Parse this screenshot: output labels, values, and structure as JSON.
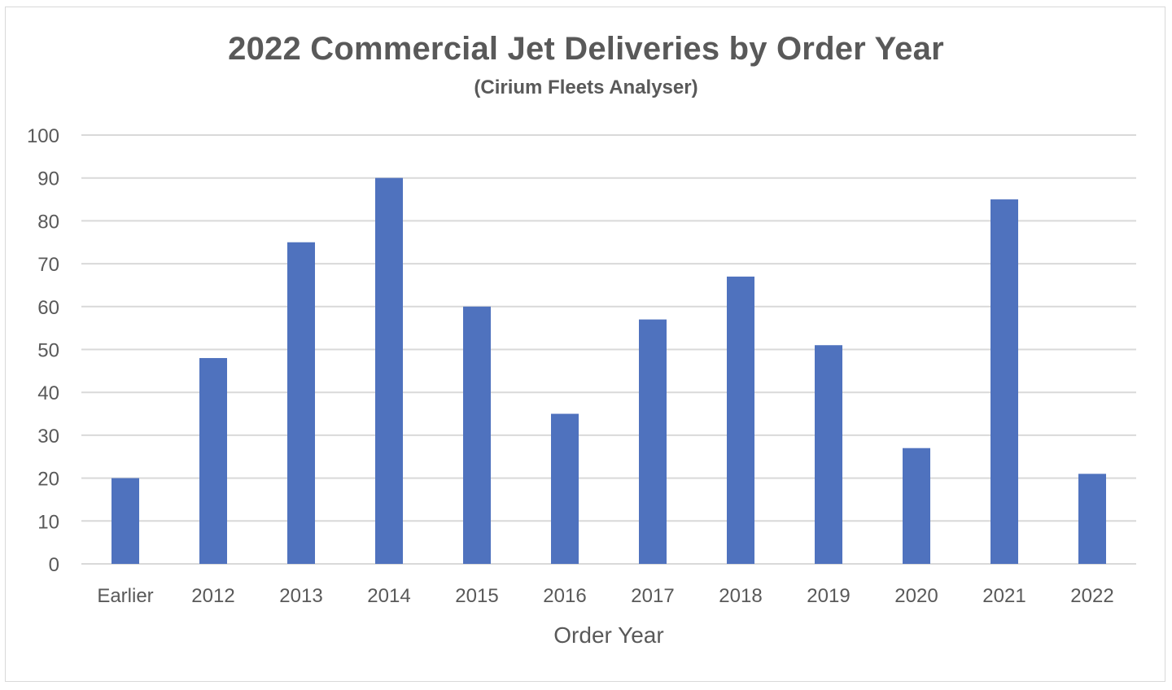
{
  "chart_data": {
    "type": "bar",
    "title": "2022 Commercial Jet Deliveries by Order Year",
    "subtitle": "(Cirium Fleets Analyser)",
    "xlabel": "Order Year",
    "ylabel": "",
    "categories": [
      "Earlier",
      "2012",
      "2013",
      "2014",
      "2015",
      "2016",
      "2017",
      "2018",
      "2019",
      "2020",
      "2021",
      "2022"
    ],
    "values": [
      20,
      48,
      75,
      90,
      60,
      35,
      57,
      67,
      51,
      27,
      85,
      21
    ],
    "ylim": [
      0,
      100
    ],
    "yticks": [
      "0",
      "10",
      "20",
      "30",
      "40",
      "50",
      "60",
      "70",
      "80",
      "90",
      "100"
    ],
    "grid": true,
    "legend": "none",
    "colors": {
      "bar": "#4f72be",
      "grid": "#d9d9d9",
      "text": "#595959"
    }
  }
}
